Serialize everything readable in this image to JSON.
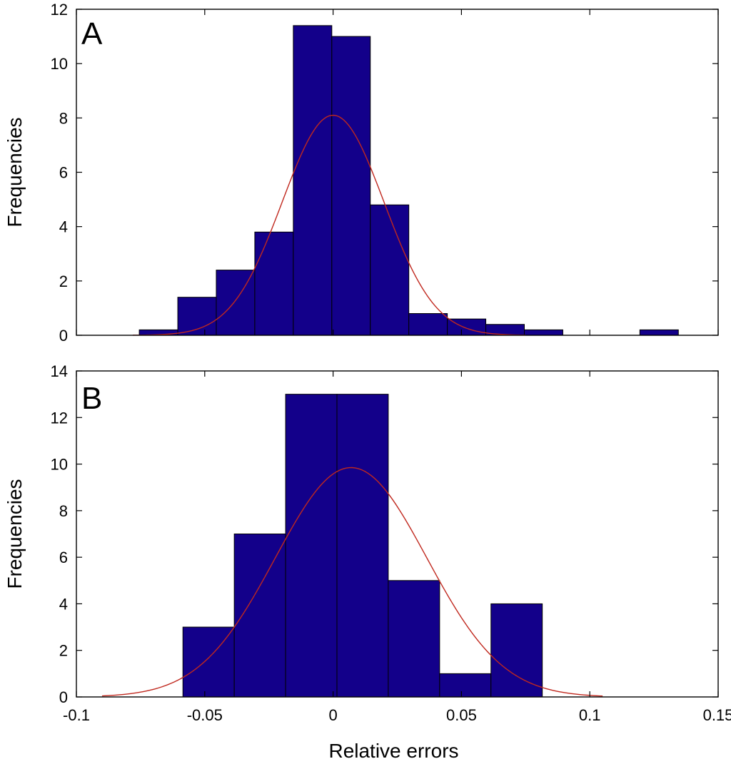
{
  "chart_data": [
    {
      "type": "bar",
      "panel_label": "A",
      "xlabel": "",
      "ylabel": "Frequencies",
      "xlim": [
        -0.1,
        0.15
      ],
      "ylim": [
        0,
        12
      ],
      "yticks": [
        0,
        2,
        4,
        6,
        8,
        10,
        12
      ],
      "yticklabels": [
        "0",
        "2",
        "4",
        "6",
        "8",
        "10",
        "12"
      ],
      "x_ticklabels_shown": false,
      "grid": false,
      "bar_color": "#13008a",
      "bins": [
        {
          "x0": -0.0755,
          "x1": -0.0605,
          "value": 0.2
        },
        {
          "x0": -0.0605,
          "x1": -0.0455,
          "value": 1.4
        },
        {
          "x0": -0.0455,
          "x1": -0.0305,
          "value": 2.4
        },
        {
          "x0": -0.0305,
          "x1": -0.0155,
          "value": 3.8
        },
        {
          "x0": -0.0155,
          "x1": -0.0005,
          "value": 11.4
        },
        {
          "x0": -0.0005,
          "x1": 0.0145,
          "value": 11.0
        },
        {
          "x0": 0.0145,
          "x1": 0.0295,
          "value": 4.8
        },
        {
          "x0": 0.0295,
          "x1": 0.0445,
          "value": 0.8
        },
        {
          "x0": 0.0445,
          "x1": 0.0595,
          "value": 0.6
        },
        {
          "x0": 0.0595,
          "x1": 0.0745,
          "value": 0.4
        },
        {
          "x0": 0.0745,
          "x1": 0.0895,
          "value": 0.2
        },
        {
          "x0": 0.1195,
          "x1": 0.1345,
          "value": 0.2
        }
      ],
      "fit_curve": {
        "color": "#c0281e",
        "type": "normal",
        "mean": 0.0,
        "peak": 8.1,
        "sd": 0.0198,
        "x_range": [
          -0.078,
          0.075
        ]
      }
    },
    {
      "type": "bar",
      "panel_label": "B",
      "xlabel": "Relative errors",
      "ylabel": "Frequencies",
      "xlim": [
        -0.1,
        0.15
      ],
      "ylim": [
        0,
        14
      ],
      "yticks": [
        0,
        2,
        4,
        6,
        8,
        10,
        12,
        14
      ],
      "yticklabels": [
        "0",
        "2",
        "4",
        "6",
        "8",
        "10",
        "12",
        "14"
      ],
      "xticks": [
        -0.1,
        -0.05,
        0,
        0.05,
        0.1,
        0.15
      ],
      "xticklabels": [
        "-0.1",
        "-0.05",
        "0",
        "0.05",
        "0.1",
        "0.15"
      ],
      "grid": false,
      "bar_color": "#13008a",
      "bins": [
        {
          "x0": -0.0585,
          "x1": -0.0385,
          "value": 3
        },
        {
          "x0": -0.0385,
          "x1": -0.0185,
          "value": 7
        },
        {
          "x0": -0.0185,
          "x1": 0.0015,
          "value": 13
        },
        {
          "x0": 0.0015,
          "x1": 0.0215,
          "value": 13
        },
        {
          "x0": 0.0215,
          "x1": 0.0415,
          "value": 5
        },
        {
          "x0": 0.0415,
          "x1": 0.0615,
          "value": 1
        },
        {
          "x0": 0.0615,
          "x1": 0.0815,
          "value": 4
        }
      ],
      "fit_curve": {
        "color": "#c0281e",
        "type": "normal",
        "mean": 0.007,
        "peak": 9.85,
        "sd": 0.0295,
        "x_range": [
          -0.09,
          0.105
        ]
      }
    }
  ]
}
